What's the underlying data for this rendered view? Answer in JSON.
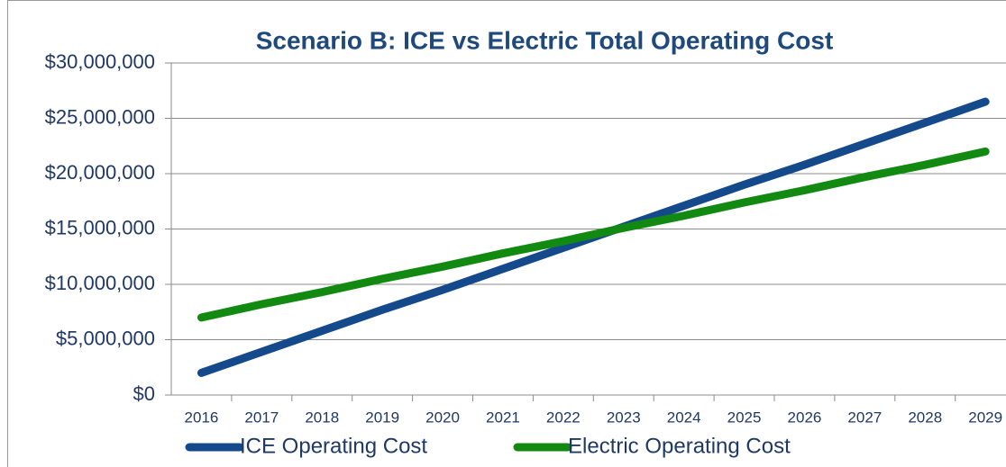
{
  "chart_data": {
    "type": "line",
    "title": "Scenario B: ICE vs Electric Total Operating Cost",
    "categories": [
      "2016",
      "2017",
      "2018",
      "2019",
      "2020",
      "2021",
      "2022",
      "2023",
      "2024",
      "2025",
      "2026",
      "2027",
      "2028",
      "2029"
    ],
    "series": [
      {
        "name": "ICE Operating Cost",
        "color": "#144a8c",
        "values": [
          2000000,
          3900000,
          5800000,
          7700000,
          9500000,
          11400000,
          13300000,
          15200000,
          17100000,
          19000000,
          20800000,
          22700000,
          24600000,
          26500000
        ]
      },
      {
        "name": "Electric Operating Cost",
        "color": "#128a12",
        "values": [
          7000000,
          8200000,
          9300000,
          10500000,
          11600000,
          12800000,
          13900000,
          15100000,
          16200000,
          17400000,
          18500000,
          19700000,
          20800000,
          22000000
        ]
      }
    ],
    "ylim": [
      0,
      30000000
    ],
    "yticks": [
      {
        "value": 0,
        "label": "$0"
      },
      {
        "value": 5000000,
        "label": "$5,000,000"
      },
      {
        "value": 10000000,
        "label": "$10,000,000"
      },
      {
        "value": 15000000,
        "label": "$15,000,000"
      },
      {
        "value": 20000000,
        "label": "$20,000,000"
      },
      {
        "value": 25000000,
        "label": "$25,000,000"
      },
      {
        "value": 30000000,
        "label": "$30,000,000"
      }
    ],
    "grid": true,
    "legend": "bottom"
  }
}
